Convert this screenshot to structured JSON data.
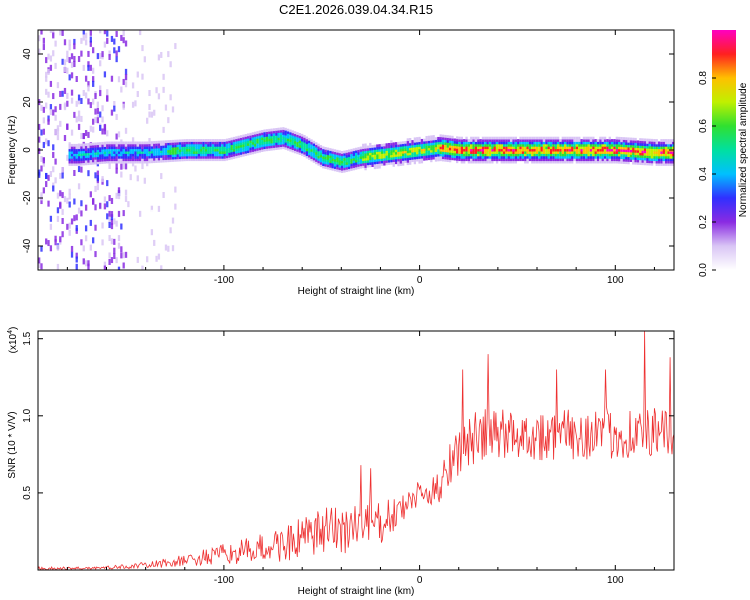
{
  "chart_data": [
    {
      "type": "heatmap",
      "title": "C2E1.2026.039.04.34.R15",
      "xlabel": "Height of straight line (km)",
      "ylabel": "Frequency (Hz)",
      "xlim": [
        -195,
        130
      ],
      "ylim": [
        -50,
        50
      ],
      "xticks": [
        -100,
        0,
        100
      ],
      "xtick_labels": [
        "-100",
        "0",
        "100"
      ],
      "yticks": [
        -40,
        -20,
        0,
        20,
        40
      ],
      "ytick_labels": [
        "-40",
        "-20",
        "0",
        "20",
        "40"
      ],
      "ridge": {
        "description": "frequency of dominant spectral peak vs height",
        "x": [
          -175,
          -160,
          -140,
          -120,
          -100,
          -90,
          -80,
          -70,
          -60,
          -50,
          -40,
          -30,
          -20,
          -10,
          0,
          10,
          20,
          40,
          60,
          80,
          100,
          120,
          130
        ],
        "y": [
          -2,
          -1,
          -1,
          0,
          0,
          2,
          4,
          5,
          2,
          -3,
          -5,
          -3,
          -2,
          -1,
          0,
          1,
          0,
          0,
          0,
          0,
          0,
          -1,
          -1
        ]
      },
      "colorbar": {
        "label": "Normalized spectral amplitude",
        "range": [
          0.0,
          1.0
        ],
        "ticks": [
          0.0,
          0.2,
          0.4,
          0.6,
          0.8
        ],
        "tick_labels": [
          "0.0",
          "0.2",
          "0.4",
          "0.6",
          "0.8"
        ],
        "colors": [
          "#ffffff",
          "#d9c5f5",
          "#8a2be2",
          "#3030ff",
          "#00c0ff",
          "#00e0a0",
          "#30e030",
          "#c0f000",
          "#ffc000",
          "#ff2020",
          "#ff00c0"
        ]
      }
    },
    {
      "type": "line",
      "title": "",
      "xlabel": "Height of straight line (km)",
      "ylabel": "SNR (10 * V/V)",
      "scale_label": "(x10",
      "scale_exp": "4",
      "scale_close": ")",
      "xlim": [
        -195,
        130
      ],
      "ylim": [
        0,
        1.55
      ],
      "xticks": [
        -100,
        0,
        100
      ],
      "xtick_labels": [
        "-100",
        "0",
        "100"
      ],
      "yticks": [
        0.5,
        1.0,
        1.5
      ],
      "ytick_labels": [
        "0.5",
        "1.0",
        "1.5"
      ],
      "series": [
        {
          "name": "SNR",
          "color": "#ee3030",
          "envelope_x": [
            -195,
            -180,
            -160,
            -140,
            -120,
            -100,
            -90,
            -80,
            -70,
            -60,
            -50,
            -40,
            -30,
            -20,
            -10,
            0,
            5,
            10,
            15,
            20,
            25,
            30,
            35,
            40,
            50,
            60,
            70,
            80,
            90,
            100,
            110,
            120,
            130
          ],
          "envelope_mean": [
            0.01,
            0.01,
            0.015,
            0.03,
            0.06,
            0.1,
            0.12,
            0.14,
            0.17,
            0.2,
            0.24,
            0.27,
            0.28,
            0.3,
            0.38,
            0.5,
            0.48,
            0.55,
            0.7,
            0.78,
            0.83,
            0.86,
            0.87,
            0.88,
            0.88,
            0.87,
            0.87,
            0.88,
            0.89,
            0.88,
            0.89,
            0.88,
            0.88
          ],
          "envelope_spread": [
            0.01,
            0.01,
            0.01,
            0.02,
            0.04,
            0.07,
            0.08,
            0.1,
            0.12,
            0.14,
            0.16,
            0.18,
            0.18,
            0.14,
            0.1,
            0.08,
            0.08,
            0.12,
            0.16,
            0.17,
            0.17,
            0.18,
            0.18,
            0.18,
            0.16,
            0.16,
            0.17,
            0.17,
            0.18,
            0.17,
            0.18,
            0.17,
            0.15
          ],
          "peaks": [
            {
              "x": -30,
              "y": 0.68
            },
            {
              "x": -25,
              "y": 0.66
            },
            {
              "x": 22,
              "y": 1.3
            },
            {
              "x": 35,
              "y": 1.4
            },
            {
              "x": 70,
              "y": 1.3
            },
            {
              "x": 95,
              "y": 1.3
            },
            {
              "x": 115,
              "y": 1.55
            },
            {
              "x": 128,
              "y": 1.38
            }
          ]
        }
      ]
    }
  ]
}
